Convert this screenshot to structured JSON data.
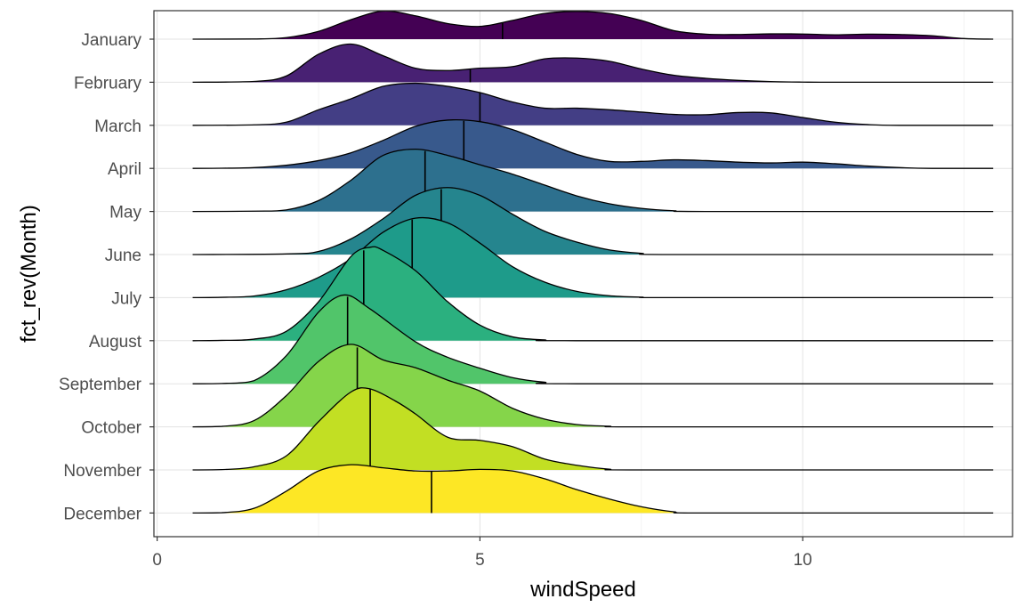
{
  "chart_data": {
    "type": "ridgeline",
    "xlabel": "windSpeed",
    "ylabel": "fct_rev(Month)",
    "xlim": [
      -0.05,
      13.25
    ],
    "x_ticks": [
      0,
      5,
      10
    ],
    "x_tick_labels": [
      "0",
      "5",
      "10"
    ],
    "grid": true,
    "density_x_range": [
      0.55,
      12.95
    ],
    "palette": "viridis",
    "series": [
      {
        "name": "January",
        "color": "#440154",
        "median": 5.35,
        "density": [
          [
            0.55,
            0
          ],
          [
            1.5,
            0.001
          ],
          [
            2.0,
            0.01
          ],
          [
            2.5,
            0.05
          ],
          [
            3.0,
            0.125
          ],
          [
            3.5,
            0.18
          ],
          [
            4.0,
            0.15
          ],
          [
            4.5,
            0.1
          ],
          [
            5.0,
            0.082
          ],
          [
            5.5,
            0.12
          ],
          [
            6.0,
            0.165
          ],
          [
            6.5,
            0.178
          ],
          [
            7.0,
            0.165
          ],
          [
            7.5,
            0.12
          ],
          [
            8.0,
            0.055
          ],
          [
            8.5,
            0.032
          ],
          [
            9.0,
            0.03
          ],
          [
            9.5,
            0.034
          ],
          [
            10.0,
            0.033
          ],
          [
            10.5,
            0.028
          ],
          [
            11.0,
            0.032
          ],
          [
            11.5,
            0.03
          ],
          [
            12.0,
            0.022
          ],
          [
            12.5,
            0.004
          ],
          [
            12.95,
            0
          ]
        ]
      },
      {
        "name": "February",
        "color": "#482173",
        "median": 4.85,
        "density": [
          [
            0.55,
            0
          ],
          [
            1.5,
            0.005
          ],
          [
            2.0,
            0.04
          ],
          [
            2.5,
            0.18
          ],
          [
            3.0,
            0.245
          ],
          [
            3.5,
            0.17
          ],
          [
            4.0,
            0.09
          ],
          [
            4.5,
            0.075
          ],
          [
            5.0,
            0.09
          ],
          [
            5.5,
            0.1
          ],
          [
            6.0,
            0.15
          ],
          [
            6.5,
            0.155
          ],
          [
            7.0,
            0.135
          ],
          [
            7.5,
            0.085
          ],
          [
            8.0,
            0.045
          ],
          [
            8.5,
            0.025
          ],
          [
            9.0,
            0.012
          ],
          [
            9.5,
            0.004
          ],
          [
            10.0,
            0.001
          ],
          [
            10.5,
            0
          ],
          [
            12.95,
            0
          ]
        ]
      },
      {
        "name": "March",
        "color": "#433E85",
        "median": 5.0,
        "density": [
          [
            0.55,
            0
          ],
          [
            1.5,
            0.003
          ],
          [
            2.0,
            0.02
          ],
          [
            2.5,
            0.1
          ],
          [
            3.0,
            0.17
          ],
          [
            3.5,
            0.25
          ],
          [
            4.0,
            0.27
          ],
          [
            4.5,
            0.25
          ],
          [
            5.0,
            0.21
          ],
          [
            5.5,
            0.15
          ],
          [
            6.0,
            0.11
          ],
          [
            6.5,
            0.11
          ],
          [
            7.0,
            0.1
          ],
          [
            7.5,
            0.085
          ],
          [
            8.0,
            0.07
          ],
          [
            8.5,
            0.068
          ],
          [
            9.0,
            0.082
          ],
          [
            9.5,
            0.08
          ],
          [
            10.0,
            0.05
          ],
          [
            10.5,
            0.02
          ],
          [
            11.0,
            0.005
          ],
          [
            11.5,
            0
          ],
          [
            12.95,
            0
          ]
        ]
      },
      {
        "name": "April",
        "color": "#38598C",
        "median": 4.75,
        "density": [
          [
            0.55,
            0
          ],
          [
            1.0,
            0.001
          ],
          [
            1.5,
            0.005
          ],
          [
            2.0,
            0.02
          ],
          [
            2.5,
            0.05
          ],
          [
            3.0,
            0.1
          ],
          [
            3.5,
            0.18
          ],
          [
            4.0,
            0.27
          ],
          [
            4.5,
            0.31
          ],
          [
            5.0,
            0.3
          ],
          [
            5.5,
            0.25
          ],
          [
            6.0,
            0.17
          ],
          [
            6.5,
            0.09
          ],
          [
            7.0,
            0.045
          ],
          [
            7.5,
            0.045
          ],
          [
            8.0,
            0.055
          ],
          [
            8.5,
            0.05
          ],
          [
            9.0,
            0.04
          ],
          [
            9.5,
            0.035
          ],
          [
            10.0,
            0.04
          ],
          [
            10.5,
            0.03
          ],
          [
            11.0,
            0.015
          ],
          [
            11.5,
            0.005
          ],
          [
            12.0,
            0
          ],
          [
            12.95,
            0
          ]
        ]
      },
      {
        "name": "May",
        "color": "#2D708E",
        "median": 4.15,
        "density": [
          [
            0.55,
            0
          ],
          [
            1.5,
            0.002
          ],
          [
            2.0,
            0.01
          ],
          [
            2.5,
            0.07
          ],
          [
            3.0,
            0.2
          ],
          [
            3.5,
            0.36
          ],
          [
            4.0,
            0.4
          ],
          [
            4.5,
            0.36
          ],
          [
            5.0,
            0.3
          ],
          [
            5.5,
            0.24
          ],
          [
            6.0,
            0.17
          ],
          [
            6.5,
            0.1
          ],
          [
            7.0,
            0.05
          ],
          [
            7.5,
            0.02
          ],
          [
            8.0,
            0.005
          ],
          [
            8.5,
            0
          ],
          [
            12.95,
            0
          ]
        ]
      },
      {
        "name": "June",
        "color": "#25858E",
        "median": 4.4,
        "density": [
          [
            0.55,
            0
          ],
          [
            2.0,
            0.004
          ],
          [
            2.5,
            0.02
          ],
          [
            3.0,
            0.1
          ],
          [
            3.5,
            0.23
          ],
          [
            4.0,
            0.38
          ],
          [
            4.5,
            0.43
          ],
          [
            5.0,
            0.38
          ],
          [
            5.5,
            0.26
          ],
          [
            6.0,
            0.15
          ],
          [
            6.5,
            0.08
          ],
          [
            7.0,
            0.03
          ],
          [
            7.5,
            0.008
          ],
          [
            8.0,
            0
          ],
          [
            12.95,
            0
          ]
        ]
      },
      {
        "name": "July",
        "color": "#1E9B8A",
        "median": 3.95,
        "density": [
          [
            0.55,
            0
          ],
          [
            1.0,
            0.002
          ],
          [
            1.5,
            0.01
          ],
          [
            2.0,
            0.05
          ],
          [
            2.5,
            0.13
          ],
          [
            3.0,
            0.25
          ],
          [
            3.5,
            0.42
          ],
          [
            4.0,
            0.51
          ],
          [
            4.5,
            0.48
          ],
          [
            5.0,
            0.35
          ],
          [
            5.5,
            0.2
          ],
          [
            6.0,
            0.1
          ],
          [
            6.5,
            0.04
          ],
          [
            7.0,
            0.012
          ],
          [
            7.5,
            0.003
          ],
          [
            8.0,
            0
          ],
          [
            12.95,
            0
          ]
        ]
      },
      {
        "name": "August",
        "color": "#2BB07F",
        "median": 3.2,
        "density": [
          [
            0.55,
            0
          ],
          [
            1.0,
            0.002
          ],
          [
            1.5,
            0.01
          ],
          [
            2.0,
            0.06
          ],
          [
            2.5,
            0.25
          ],
          [
            3.0,
            0.54
          ],
          [
            3.3,
            0.6
          ],
          [
            3.5,
            0.58
          ],
          [
            4.0,
            0.45
          ],
          [
            4.5,
            0.25
          ],
          [
            5.0,
            0.1
          ],
          [
            5.5,
            0.025
          ],
          [
            6.0,
            0.005
          ],
          [
            6.5,
            0
          ],
          [
            12.95,
            0
          ]
        ]
      },
      {
        "name": "September",
        "color": "#51C56A",
        "median": 2.95,
        "density": [
          [
            0.55,
            0
          ],
          [
            1.0,
            0.002
          ],
          [
            1.5,
            0.02
          ],
          [
            2.0,
            0.18
          ],
          [
            2.5,
            0.46
          ],
          [
            2.9,
            0.57
          ],
          [
            3.3,
            0.48
          ],
          [
            4.0,
            0.27
          ],
          [
            4.5,
            0.17
          ],
          [
            5.0,
            0.1
          ],
          [
            5.5,
            0.04
          ],
          [
            6.0,
            0.01
          ],
          [
            6.5,
            0
          ],
          [
            12.95,
            0
          ]
        ]
      },
      {
        "name": "October",
        "color": "#85D54A",
        "median": 3.1,
        "density": [
          [
            0.55,
            0
          ],
          [
            1.0,
            0.003
          ],
          [
            1.5,
            0.04
          ],
          [
            2.0,
            0.2
          ],
          [
            2.5,
            0.42
          ],
          [
            3.0,
            0.53
          ],
          [
            3.5,
            0.43
          ],
          [
            4.0,
            0.38
          ],
          [
            4.5,
            0.3
          ],
          [
            5.0,
            0.23
          ],
          [
            5.5,
            0.12
          ],
          [
            6.0,
            0.05
          ],
          [
            6.5,
            0.015
          ],
          [
            7.0,
            0.004
          ],
          [
            7.5,
            0
          ],
          [
            12.95,
            0
          ]
        ]
      },
      {
        "name": "November",
        "color": "#C2DF23",
        "median": 3.3,
        "density": [
          [
            0.55,
            0
          ],
          [
            1.0,
            0.002
          ],
          [
            1.5,
            0.02
          ],
          [
            2.0,
            0.09
          ],
          [
            2.5,
            0.31
          ],
          [
            3.0,
            0.5
          ],
          [
            3.3,
            0.52
          ],
          [
            3.7,
            0.44
          ],
          [
            4.0,
            0.36
          ],
          [
            4.5,
            0.21
          ],
          [
            5.0,
            0.19
          ],
          [
            5.5,
            0.15
          ],
          [
            6.0,
            0.07
          ],
          [
            6.5,
            0.03
          ],
          [
            7.0,
            0.005
          ],
          [
            7.5,
            0
          ],
          [
            12.95,
            0
          ]
        ]
      },
      {
        "name": "December",
        "color": "#FDE725",
        "median": 4.25,
        "density": [
          [
            0.55,
            0
          ],
          [
            1.0,
            0.002
          ],
          [
            1.5,
            0.03
          ],
          [
            2.0,
            0.14
          ],
          [
            2.5,
            0.27
          ],
          [
            3.0,
            0.31
          ],
          [
            3.5,
            0.29
          ],
          [
            4.0,
            0.27
          ],
          [
            4.5,
            0.27
          ],
          [
            5.0,
            0.28
          ],
          [
            5.5,
            0.27
          ],
          [
            6.0,
            0.22
          ],
          [
            6.5,
            0.15
          ],
          [
            7.0,
            0.09
          ],
          [
            7.5,
            0.04
          ],
          [
            8.0,
            0.008
          ],
          [
            8.5,
            0
          ],
          [
            12.95,
            0
          ]
        ]
      }
    ]
  }
}
